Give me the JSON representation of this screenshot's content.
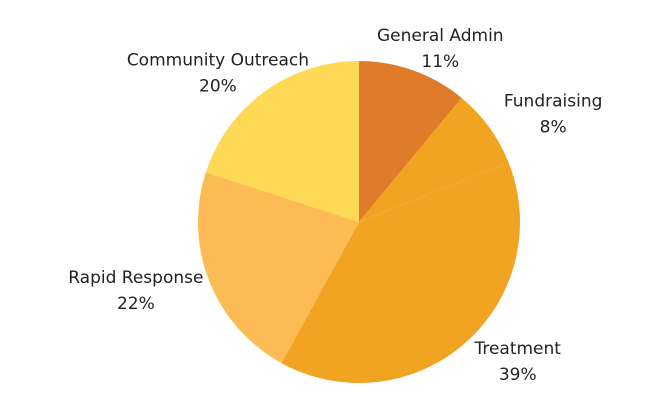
{
  "chart_data": {
    "type": "pie",
    "categories": [
      "General Admin",
      "Fundraising",
      "Treatment",
      "Rapid Response",
      "Community Outreach"
    ],
    "values": [
      11,
      8,
      39,
      22,
      20
    ],
    "value_labels": [
      "11%",
      "8%",
      "39%",
      "22%",
      "20%"
    ],
    "colors": [
      "#e07b2a",
      "#f0a422",
      "#f0a422",
      "#fdbb55",
      "#fdd955"
    ]
  }
}
